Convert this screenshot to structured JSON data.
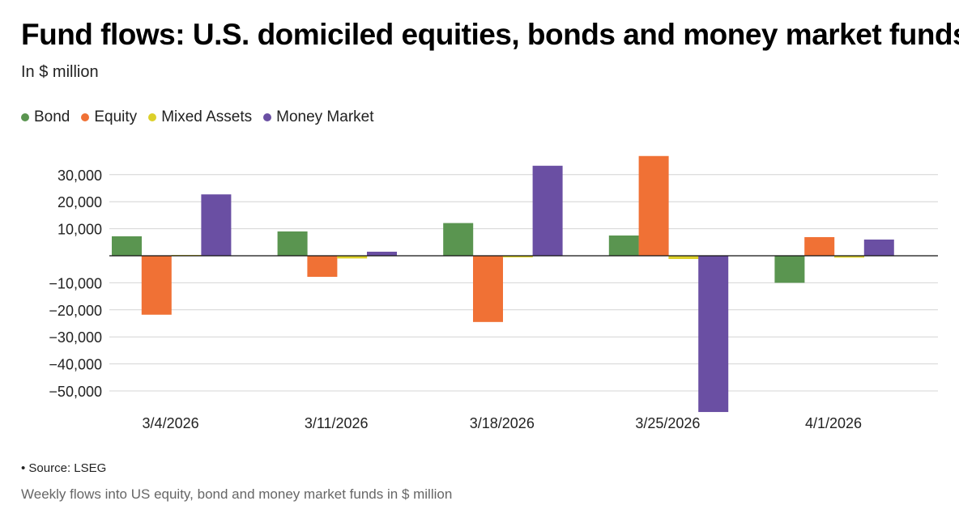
{
  "title": "Fund flows: U.S. domiciled equities, bonds and money market funds",
  "subtitle": "In $ million",
  "legend": [
    {
      "label": "Bond",
      "color": "#5a9550"
    },
    {
      "label": "Equity",
      "color": "#f07135"
    },
    {
      "label": "Mixed Assets",
      "color": "#dcd02a"
    },
    {
      "label": "Money Market",
      "color": "#6a4fa3"
    }
  ],
  "chart_data": {
    "type": "bar",
    "title": "Fund flows: U.S. domiciled equities, bonds and money market funds",
    "ylabel": "In $ million",
    "xlabel": "",
    "categories": [
      "3/4/2026",
      "3/11/2026",
      "3/18/2026",
      "3/25/2026",
      "4/1/2026"
    ],
    "ylim": [
      -58000,
      37000
    ],
    "yticks": [
      30000,
      20000,
      10000,
      -10000,
      -20000,
      -30000,
      -40000,
      -50000
    ],
    "ytick_labels": [
      "30,000",
      "20,000",
      "10,000",
      "−10,000",
      "−20,000",
      "−30,000",
      "−40,000",
      "−50,000"
    ],
    "grid": true,
    "legend_position": "top-left",
    "series": [
      {
        "name": "Bond",
        "color": "#5a9550",
        "values": [
          7200,
          9000,
          12100,
          7500,
          -10000
        ]
      },
      {
        "name": "Equity",
        "color": "#f07135",
        "values": [
          -21800,
          -7800,
          -24500,
          36900,
          6900
        ]
      },
      {
        "name": "Mixed Assets",
        "color": "#dcd02a",
        "values": [
          300,
          -1000,
          -600,
          -1200,
          -700
        ]
      },
      {
        "name": "Money Market",
        "color": "#6a4fa3",
        "values": [
          22700,
          1500,
          33300,
          -57800,
          6000
        ]
      }
    ]
  },
  "source": "• Source: LSEG",
  "caption": "Weekly flows into US equity, bond and money market funds in $ million"
}
